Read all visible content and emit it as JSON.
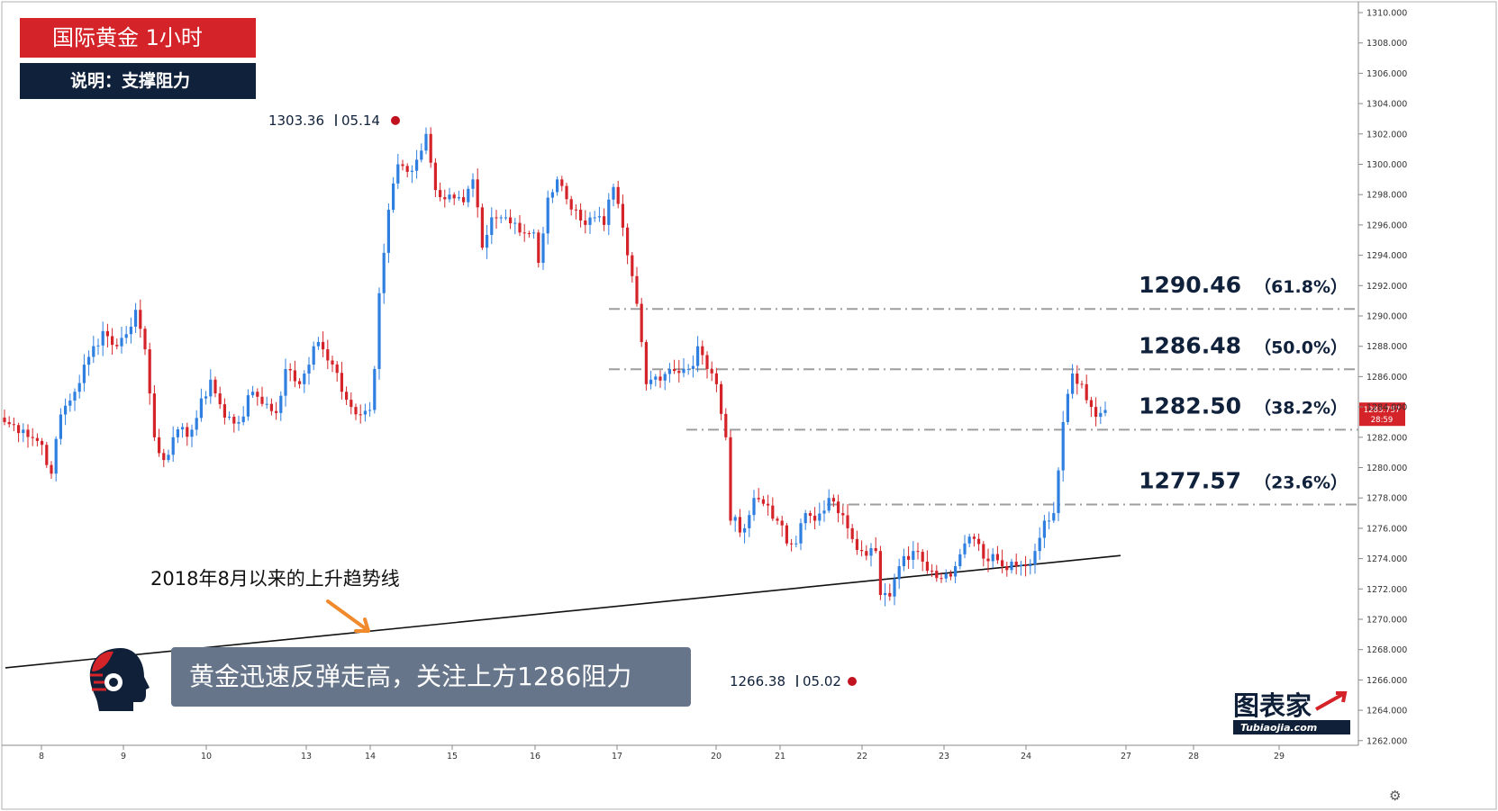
{
  "header": {
    "title": "国际黄金 1小时",
    "subtitle": "说明：支撑阻力"
  },
  "comment": "黄金迅速反弹走高，关注上方1286阻力",
  "trendline_label": "2018年8月以来的上升趋势线",
  "watermark": {
    "main": "图表家",
    "sub": "Tubiaojia.com"
  },
  "colors": {
    "up": "#2e7fe0",
    "down": "#d4242a",
    "title_bg": "#d4242a",
    "subtitle_bg": "#10213b",
    "comment_bg": "#66758a",
    "arrow": "#f08a2c",
    "fib_line": "#9e9e9e",
    "marker": "#c1121f"
  },
  "chart_data": {
    "type": "candlestick",
    "title": "国际黄金 1小时",
    "xlabel": "",
    "ylabel": "",
    "ylim": [
      1261.1,
      1311.1
    ],
    "grid": false,
    "x_ticks": [
      "8",
      "9",
      "10",
      "13",
      "14",
      "15",
      "16",
      "17",
      "20",
      "21",
      "22",
      "23",
      "24",
      "27",
      "28",
      "29"
    ],
    "y_ticks": [
      "1310.000",
      "1308.000",
      "1306.000",
      "1304.000",
      "1302.000",
      "1300.000",
      "1298.000",
      "1296.000",
      "1294.000",
      "1292.000",
      "1290.000",
      "1288.000",
      "1286.000",
      "1284.000",
      "1282.000",
      "1280.000",
      "1278.000",
      "1276.000",
      "1274.000",
      "1272.000",
      "1270.000",
      "1268.000",
      "1266.000",
      "1264.000",
      "1262.000"
    ],
    "current_price": {
      "price": "1283.757",
      "countdown": "28:59",
      "value": 1283.757
    },
    "fib_levels": [
      {
        "price": "1290.46",
        "pct": "（61.8%）",
        "value": 1290.46
      },
      {
        "price": "1286.48",
        "pct": "（50.0%）",
        "value": 1286.48
      },
      {
        "price": "1282.50",
        "pct": "（38.2%）",
        "value": 1282.5
      },
      {
        "price": "1277.57",
        "pct": "（23.6%）",
        "value": 1277.57
      }
    ],
    "high_marker": {
      "price": "1303.36",
      "date": "05.14",
      "value": 1303.36
    },
    "low_marker": {
      "price": "1266.38",
      "date": "05.02",
      "value": 1266.38
    },
    "trendline": [
      {
        "x": "8",
        "y": 1266.8
      },
      {
        "x": "27",
        "y": 1274.2
      }
    ],
    "waypoints": [
      [
        0,
        1283.0
      ],
      [
        4,
        1282.5
      ],
      [
        8,
        1281.5
      ],
      [
        10,
        1279.6
      ],
      [
        12,
        1283.5
      ],
      [
        15,
        1285.0
      ],
      [
        18,
        1287.3
      ],
      [
        21,
        1289.0
      ],
      [
        24,
        1288.0
      ],
      [
        26,
        1288.8
      ],
      [
        28,
        1290.4
      ],
      [
        30,
        1287.8
      ],
      [
        32,
        1282.0
      ],
      [
        34,
        1280.5
      ],
      [
        36,
        1282.0
      ],
      [
        40,
        1282.5
      ],
      [
        44,
        1285.8
      ],
      [
        47,
        1283.3
      ],
      [
        50,
        1283.0
      ],
      [
        53,
        1285.0
      ],
      [
        58,
        1283.6
      ],
      [
        60,
        1286.5
      ],
      [
        63,
        1285.5
      ],
      [
        66,
        1288.0
      ],
      [
        68,
        1287.8
      ],
      [
        70,
        1286.8
      ],
      [
        72,
        1285.0
      ],
      [
        74,
        1284.0
      ],
      [
        76,
        1283.5
      ],
      [
        78,
        1283.8
      ],
      [
        79,
        1286.5
      ],
      [
        80,
        1291.5
      ],
      [
        82,
        1297.0
      ],
      [
        84,
        1300.0
      ],
      [
        86,
        1299.5
      ],
      [
        88,
        1300.3
      ],
      [
        90,
        1302.0
      ],
      [
        92,
        1298.3
      ],
      [
        95,
        1298.0
      ],
      [
        98,
        1297.5
      ],
      [
        100,
        1299.0
      ],
      [
        102,
        1294.5
      ],
      [
        104,
        1296.5
      ],
      [
        107,
        1296.5
      ],
      [
        110,
        1295.5
      ],
      [
        113,
        1295.5
      ],
      [
        114,
        1293.5
      ],
      [
        116,
        1297.8
      ],
      [
        118,
        1299.0
      ],
      [
        120,
        1297.7
      ],
      [
        122,
        1297.0
      ],
      [
        124,
        1296.0
      ],
      [
        126,
        1296.5
      ],
      [
        128,
        1296.0
      ],
      [
        130,
        1298.5
      ],
      [
        133,
        1294.0
      ],
      [
        135,
        1290.8
      ],
      [
        137,
        1285.5
      ],
      [
        139,
        1286.0
      ],
      [
        142,
        1286.5
      ],
      [
        145,
        1286.5
      ],
      [
        147,
        1286.7
      ],
      [
        148,
        1288.0
      ],
      [
        150,
        1286.5
      ],
      [
        152,
        1285.5
      ],
      [
        154,
        1282.0
      ],
      [
        155,
        1276.5
      ],
      [
        158,
        1276.0
      ],
      [
        160,
        1278.0
      ],
      [
        163,
        1277.5
      ],
      [
        165,
        1276.5
      ],
      [
        167,
        1275.0
      ],
      [
        169,
        1275.0
      ],
      [
        171,
        1277.0
      ],
      [
        173,
        1276.5
      ],
      [
        176,
        1278.0
      ],
      [
        178,
        1277.0
      ],
      [
        180,
        1276.0
      ],
      [
        183,
        1274.5
      ],
      [
        186,
        1274.5
      ],
      [
        187,
        1271.6
      ],
      [
        189,
        1271.5
      ],
      [
        191,
        1273.5
      ],
      [
        194,
        1274.5
      ],
      [
        196,
        1273.8
      ],
      [
        198,
        1273.2
      ],
      [
        201,
        1273.0
      ],
      [
        203,
        1273.5
      ],
      [
        205,
        1275.0
      ],
      [
        207,
        1275.3
      ],
      [
        209,
        1274.0
      ],
      [
        211,
        1274.3
      ],
      [
        213,
        1273.5
      ],
      [
        215,
        1273.8
      ],
      [
        218,
        1273.5
      ],
      [
        220,
        1274.5
      ],
      [
        222,
        1276.5
      ],
      [
        224,
        1277.0
      ],
      [
        226,
        1283.0
      ],
      [
        228,
        1286.2
      ],
      [
        230,
        1285.5
      ],
      [
        232,
        1284.0
      ],
      [
        234,
        1283.6
      ],
      [
        235,
        1283.8
      ]
    ]
  }
}
